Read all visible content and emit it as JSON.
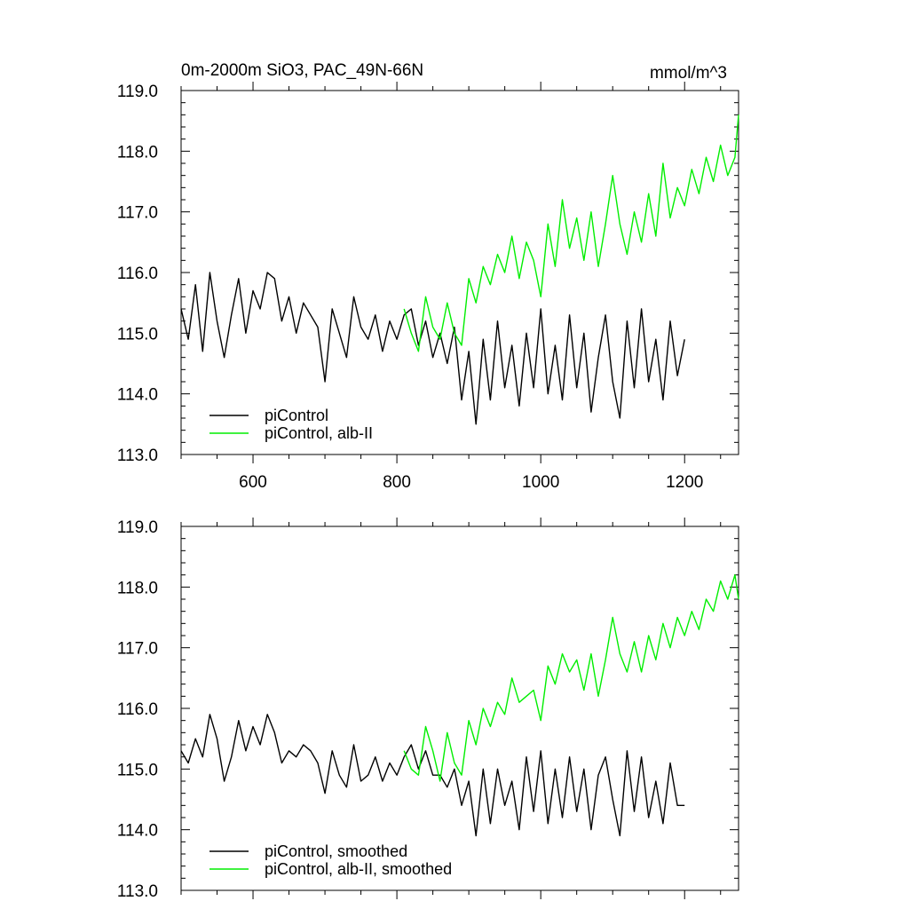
{
  "figure": {
    "title": "0m-2000m SiO3, PAC_49N-66N",
    "units": "mmol/m^3"
  },
  "colors": {
    "control": "#000000",
    "albII": "#00ee00"
  },
  "chart_data": [
    {
      "type": "line",
      "panel": "top",
      "xlim": [
        500,
        1275
      ],
      "ylim": [
        113.0,
        119.0
      ],
      "x_ticks": [
        600,
        800,
        1000,
        1200
      ],
      "x_tick_labels": [
        "600",
        "800",
        "1000",
        "1200"
      ],
      "y_ticks": [
        113.0,
        114.0,
        115.0,
        116.0,
        117.0,
        118.0,
        119.0
      ],
      "y_tick_labels": [
        "113.0",
        "114.0",
        "115.0",
        "116.0",
        "117.0",
        "118.0",
        "119.0"
      ],
      "legend": [
        "piControl",
        "piControl, alb-II"
      ],
      "legend_position": "bottom-left",
      "series": [
        {
          "name": "piControl",
          "x": [
            500,
            510,
            520,
            530,
            540,
            550,
            560,
            570,
            580,
            590,
            600,
            610,
            620,
            630,
            640,
            650,
            660,
            670,
            680,
            690,
            700,
            710,
            720,
            730,
            740,
            750,
            760,
            770,
            780,
            790,
            800,
            810,
            820,
            830,
            840,
            850,
            860,
            870,
            880,
            890,
            900,
            910,
            920,
            930,
            940,
            950,
            960,
            970,
            980,
            990,
            1000,
            1010,
            1020,
            1030,
            1040,
            1050,
            1060,
            1070,
            1080,
            1090,
            1100,
            1110,
            1120,
            1130,
            1140,
            1150,
            1160,
            1170,
            1180,
            1190,
            1200
          ],
          "values": [
            115.4,
            114.9,
            115.8,
            114.7,
            116.0,
            115.2,
            114.6,
            115.3,
            115.9,
            115.0,
            115.7,
            115.4,
            116.0,
            115.9,
            115.2,
            115.6,
            115.0,
            115.5,
            115.3,
            115.1,
            114.2,
            115.4,
            115.0,
            114.6,
            115.6,
            115.1,
            114.9,
            115.3,
            114.7,
            115.2,
            114.9,
            115.3,
            115.4,
            114.8,
            115.2,
            114.6,
            115.0,
            114.5,
            115.1,
            113.9,
            114.7,
            113.5,
            114.9,
            113.9,
            115.2,
            114.1,
            114.8,
            113.8,
            115.0,
            114.1,
            115.4,
            114.0,
            114.8,
            113.9,
            115.3,
            114.1,
            115.0,
            113.7,
            114.6,
            115.3,
            114.2,
            113.6,
            115.2,
            114.1,
            115.4,
            114.2,
            114.9,
            113.9,
            115.2,
            114.3,
            114.9
          ]
        },
        {
          "name": "piControl, alb-II",
          "x": [
            810,
            820,
            830,
            840,
            850,
            860,
            870,
            880,
            890,
            900,
            910,
            920,
            930,
            940,
            950,
            960,
            970,
            980,
            990,
            1000,
            1010,
            1020,
            1030,
            1040,
            1050,
            1060,
            1070,
            1080,
            1090,
            1100,
            1110,
            1120,
            1130,
            1140,
            1150,
            1160,
            1170,
            1180,
            1190,
            1200,
            1210,
            1220,
            1230,
            1240,
            1250,
            1260,
            1270,
            1275
          ],
          "values": [
            115.4,
            115.0,
            114.7,
            115.6,
            115.1,
            114.9,
            115.5,
            115.0,
            114.8,
            115.9,
            115.5,
            116.1,
            115.8,
            116.3,
            116.0,
            116.6,
            115.9,
            116.5,
            116.2,
            115.6,
            116.8,
            116.1,
            117.2,
            116.4,
            116.9,
            116.2,
            117.0,
            116.1,
            116.8,
            117.6,
            116.8,
            116.3,
            117.0,
            116.5,
            117.3,
            116.6,
            117.8,
            116.9,
            117.4,
            117.1,
            117.7,
            117.3,
            117.9,
            117.5,
            118.1,
            117.6,
            117.9,
            118.6
          ]
        }
      ]
    },
    {
      "type": "line",
      "panel": "bottom",
      "xlim": [
        500,
        1275
      ],
      "ylim": [
        113.0,
        119.0
      ],
      "y_ticks": [
        113.0,
        114.0,
        115.0,
        116.0,
        117.0,
        118.0,
        119.0
      ],
      "y_tick_labels": [
        "113.0",
        "114.0",
        "115.0",
        "116.0",
        "117.0",
        "118.0",
        "119.0"
      ],
      "legend": [
        "piControl, smoothed",
        "piControl, alb-II, smoothed"
      ],
      "legend_position": "bottom-left",
      "series": [
        {
          "name": "piControl, smoothed",
          "x": [
            500,
            510,
            520,
            530,
            540,
            550,
            560,
            570,
            580,
            590,
            600,
            610,
            620,
            630,
            640,
            650,
            660,
            670,
            680,
            690,
            700,
            710,
            720,
            730,
            740,
            750,
            760,
            770,
            780,
            790,
            800,
            810,
            820,
            830,
            840,
            850,
            860,
            870,
            880,
            890,
            900,
            910,
            920,
            930,
            940,
            950,
            960,
            970,
            980,
            990,
            1000,
            1010,
            1020,
            1030,
            1040,
            1050,
            1060,
            1070,
            1080,
            1090,
            1100,
            1110,
            1120,
            1130,
            1140,
            1150,
            1160,
            1170,
            1180,
            1190,
            1200
          ],
          "values": [
            115.3,
            115.1,
            115.5,
            115.2,
            115.9,
            115.5,
            114.8,
            115.2,
            115.8,
            115.3,
            115.7,
            115.4,
            115.9,
            115.6,
            115.1,
            115.3,
            115.2,
            115.4,
            115.3,
            115.1,
            114.6,
            115.3,
            114.9,
            114.7,
            115.4,
            114.8,
            114.9,
            115.2,
            114.8,
            115.1,
            114.9,
            115.2,
            115.4,
            115.0,
            115.3,
            114.9,
            114.9,
            114.7,
            115.0,
            114.4,
            114.8,
            113.9,
            115.0,
            114.1,
            115.0,
            114.4,
            114.8,
            114.0,
            115.2,
            114.3,
            115.3,
            114.1,
            115.0,
            114.2,
            115.2,
            114.3,
            115.0,
            114.0,
            114.9,
            115.2,
            114.5,
            113.9,
            115.3,
            114.3,
            115.2,
            114.2,
            114.8,
            114.1,
            115.1,
            114.4,
            114.4
          ]
        },
        {
          "name": "piControl, alb-II, smoothed",
          "x": [
            810,
            820,
            830,
            840,
            850,
            860,
            870,
            880,
            890,
            900,
            910,
            920,
            930,
            940,
            950,
            960,
            970,
            980,
            990,
            1000,
            1010,
            1020,
            1030,
            1040,
            1050,
            1060,
            1070,
            1080,
            1090,
            1100,
            1110,
            1120,
            1130,
            1140,
            1150,
            1160,
            1170,
            1180,
            1190,
            1200,
            1210,
            1220,
            1230,
            1240,
            1250,
            1260,
            1270,
            1275
          ],
          "values": [
            115.3,
            115.0,
            114.9,
            115.7,
            115.3,
            114.8,
            115.6,
            115.1,
            114.9,
            115.8,
            115.4,
            116.0,
            115.7,
            116.1,
            115.9,
            116.5,
            116.1,
            116.2,
            116.3,
            115.8,
            116.7,
            116.4,
            116.9,
            116.6,
            116.8,
            116.3,
            116.9,
            116.2,
            116.8,
            117.5,
            116.9,
            116.6,
            117.1,
            116.6,
            117.2,
            116.8,
            117.4,
            117.0,
            117.5,
            117.2,
            117.6,
            117.3,
            117.8,
            117.6,
            118.1,
            117.8,
            118.2,
            117.8
          ]
        }
      ]
    }
  ]
}
